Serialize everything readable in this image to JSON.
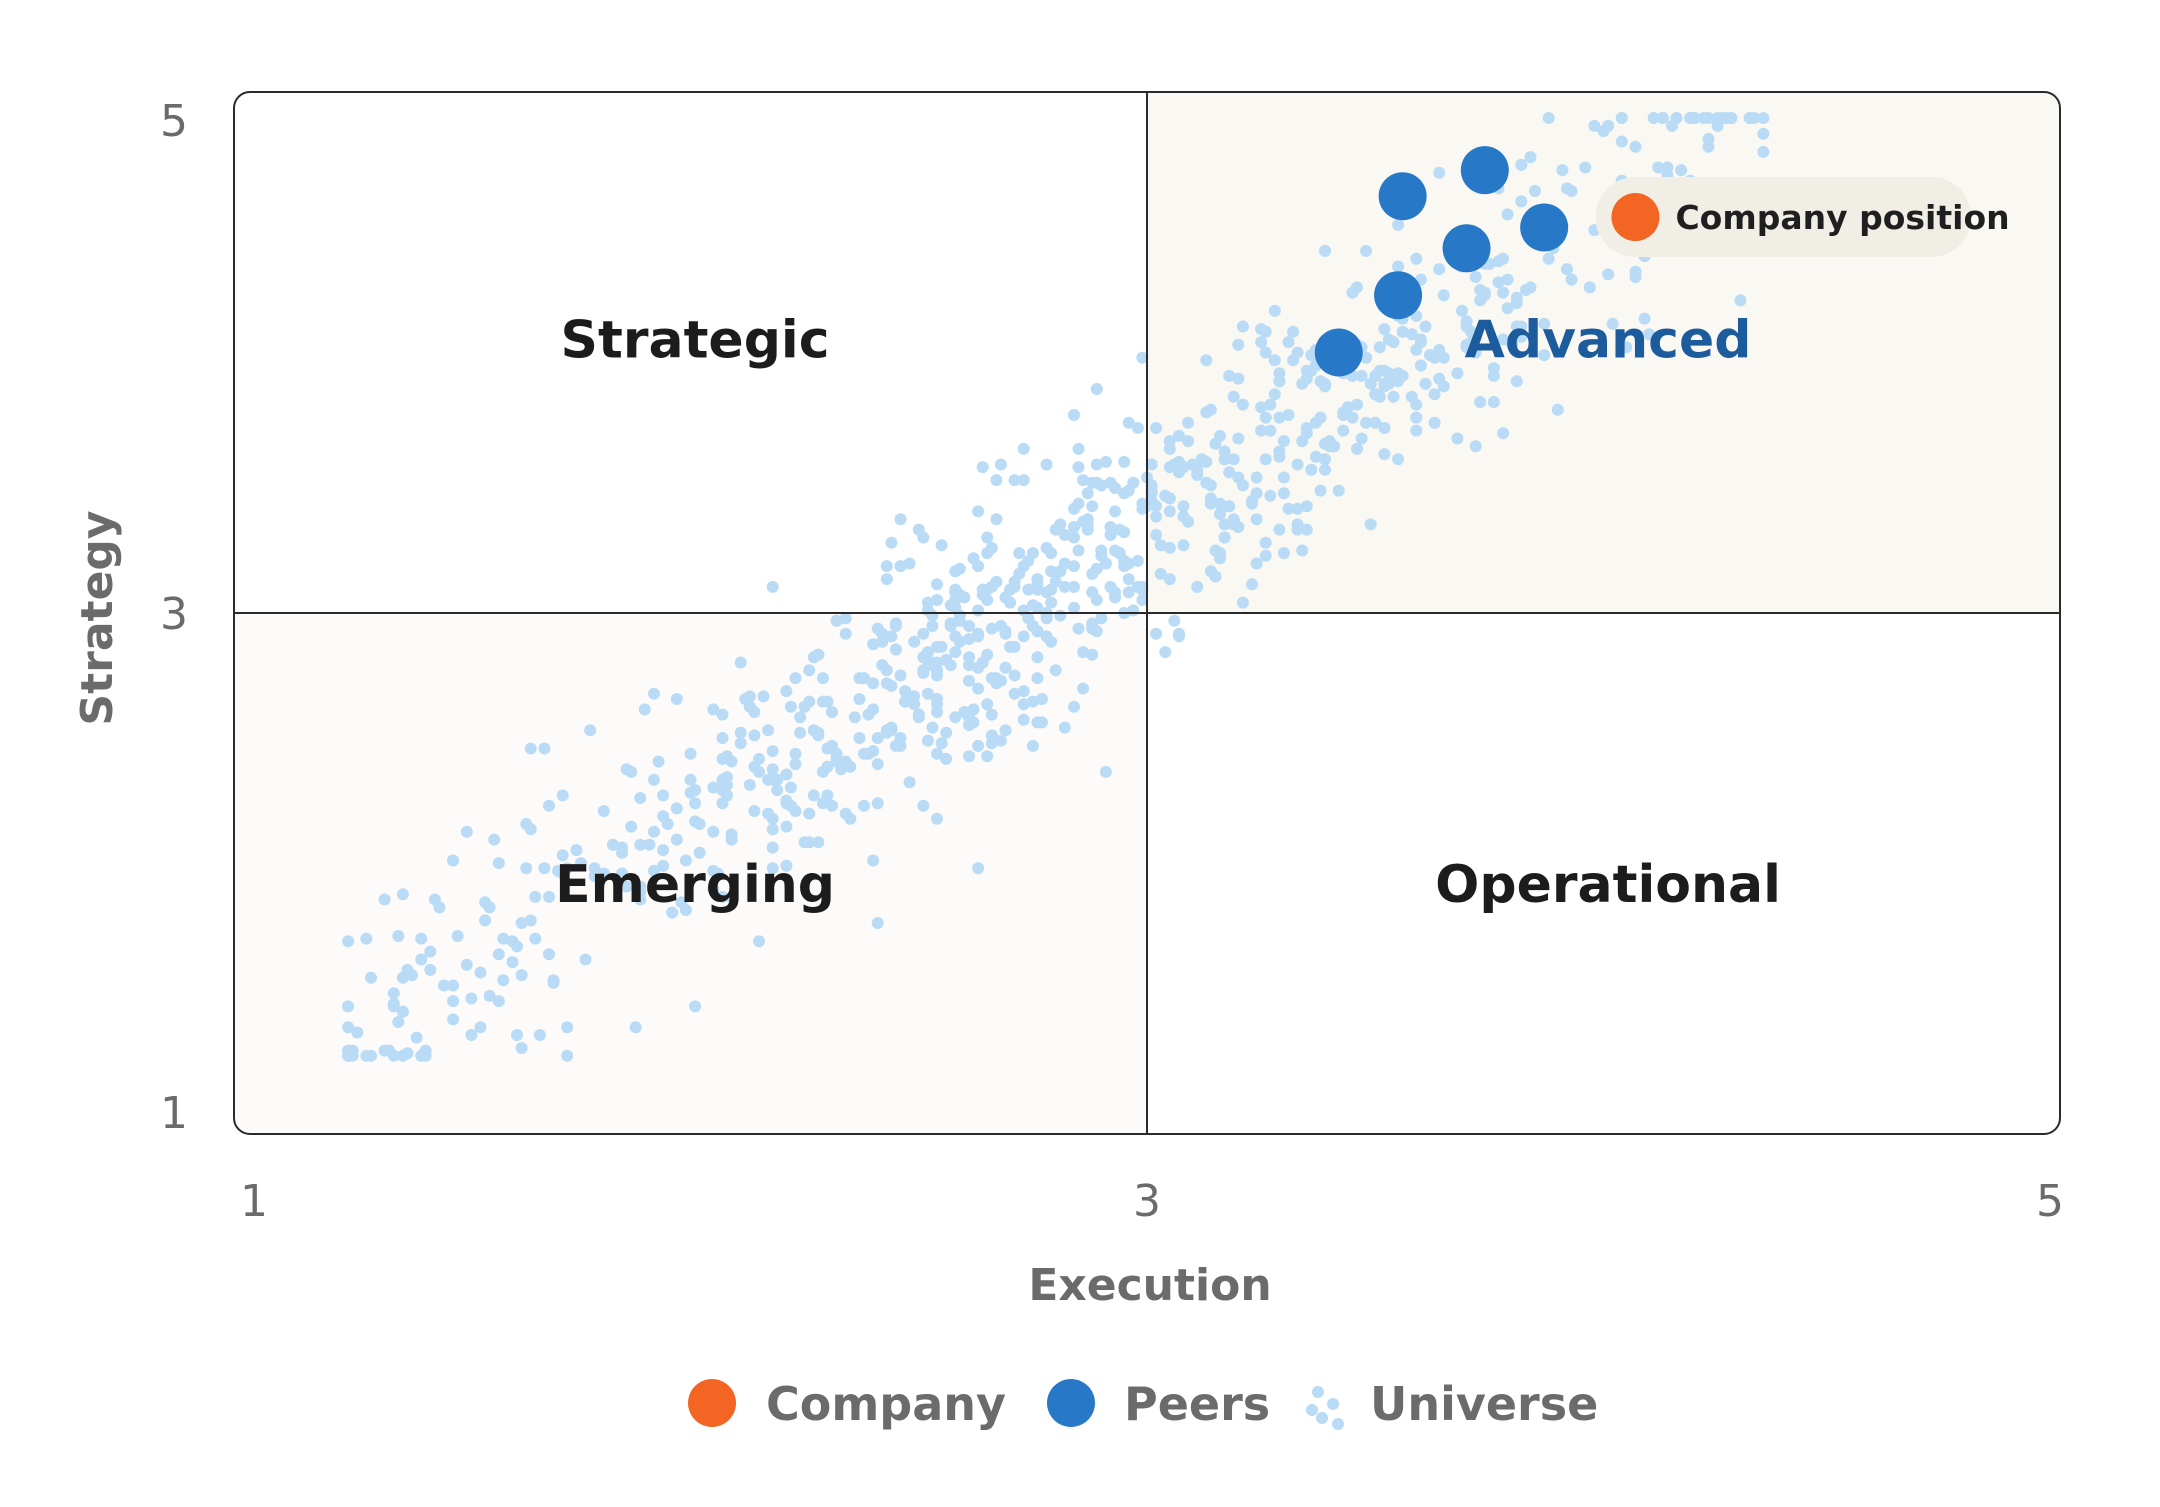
{
  "chart_data": {
    "type": "scatter",
    "title": "",
    "xlabel": "Execution",
    "ylabel": "Strategy",
    "xlim": [
      1,
      5
    ],
    "ylim": [
      1,
      5
    ],
    "xticks": [
      "1",
      "3",
      "5"
    ],
    "yticks": [
      "1",
      "3",
      "5"
    ],
    "quadrant_split": {
      "x": 3,
      "y": 3
    },
    "quadrants": [
      {
        "label": "Strategic",
        "x": 2.01,
        "y": 4.05,
        "accent": false
      },
      {
        "label": "Advanced",
        "x": 4.01,
        "y": 4.05,
        "accent": true
      },
      {
        "label": "Emerging",
        "x": 2.01,
        "y": 1.96,
        "accent": false
      },
      {
        "label": "Operational",
        "x": 4.01,
        "y": 1.96,
        "accent": false
      }
    ],
    "colors": {
      "company": "#f26522",
      "peers": "#2878c8",
      "universe": "#b9dbf5",
      "accent_label": "#1d5c9c",
      "advanced_bg": "#faf8f2",
      "emerging_bg": "#fdfbfa",
      "callout_bg": "#f1efe5"
    },
    "series": [
      {
        "name": "Company",
        "points": [
          [
            4.07,
            4.52
          ]
        ]
      },
      {
        "name": "Peers",
        "points": [
          [
            3.56,
            4.6
          ],
          [
            3.74,
            4.7
          ],
          [
            3.7,
            4.4
          ],
          [
            3.87,
            4.48
          ],
          [
            3.55,
            4.22
          ],
          [
            3.42,
            4.0
          ]
        ]
      },
      {
        "name": "Universe",
        "points": [],
        "generated_count": 900
      }
    ],
    "annotations": [
      {
        "text": "Company position",
        "x": 4.07,
        "y": 4.52
      }
    ],
    "legend": {
      "placement": "bottom-center",
      "items": [
        {
          "label": "Company",
          "marker": "company-dot"
        },
        {
          "label": "Peers",
          "marker": "peer-dot"
        },
        {
          "label": "Universe",
          "marker": "universe-dots"
        }
      ]
    }
  }
}
